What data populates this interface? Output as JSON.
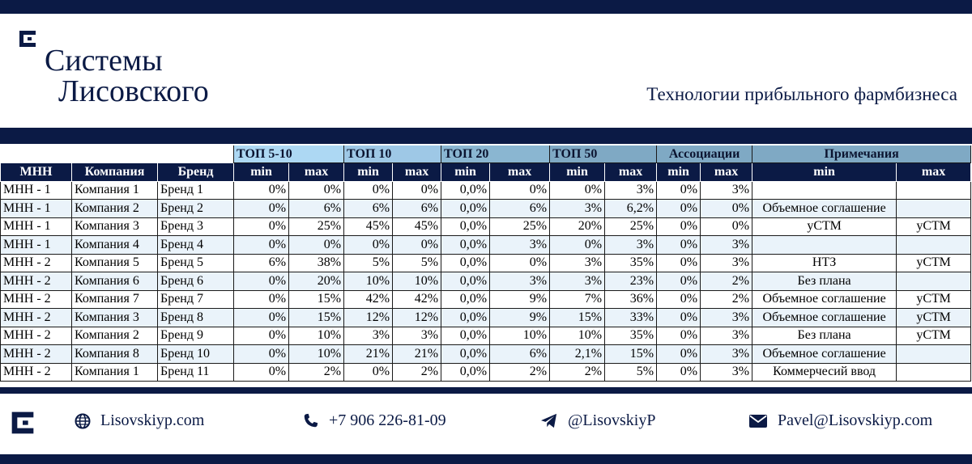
{
  "header": {
    "brand_line1": "Системы",
    "brand_line2": "Лисовского",
    "tagline": "Технологии прибыльного фармбизнеса",
    "logo_icon": "logo-bracket-icon"
  },
  "table": {
    "groups": {
      "top5_10": "ТОП 5-10",
      "top10": "ТОП 10",
      "top20": "ТОП 20",
      "top50": "ТОП 50",
      "assoc": "Ассоциации",
      "notes": "Примечания"
    },
    "columns": [
      "МНН",
      "Компания",
      "Бренд",
      "min",
      "max",
      "min",
      "max",
      "min",
      "max",
      "min",
      "max",
      "min",
      "max",
      "min",
      "max"
    ],
    "rows": [
      [
        "МНН - 1",
        "Компания 1",
        "Бренд 1",
        "0%",
        "0%",
        "0%",
        "0%",
        "0,0%",
        "0%",
        "0%",
        "3%",
        "0%",
        "3%",
        "",
        ""
      ],
      [
        "МНН - 1",
        "Компания 2",
        "Бренд 2",
        "0%",
        "6%",
        "6%",
        "6%",
        "0,0%",
        "6%",
        "3%",
        "6,2%",
        "0%",
        "0%",
        "Объемное соглашение",
        ""
      ],
      [
        "МНН - 1",
        "Компания 3",
        "Бренд 3",
        "0%",
        "25%",
        "45%",
        "45%",
        "0,0%",
        "25%",
        "20%",
        "25%",
        "0%",
        "0%",
        "уСТМ",
        "уСТМ"
      ],
      [
        "МНН - 1",
        "Компания 4",
        "Бренд 4",
        "0%",
        "0%",
        "0%",
        "0%",
        "0,0%",
        "3%",
        "0%",
        "3%",
        "0%",
        "3%",
        "",
        ""
      ],
      [
        "МНН - 2",
        "Компания 5",
        "Бренд 5",
        "6%",
        "38%",
        "5%",
        "5%",
        "0,0%",
        "0%",
        "3%",
        "35%",
        "0%",
        "3%",
        "НТЗ",
        "уСТМ"
      ],
      [
        "МНН - 2",
        "Компания 6",
        "Бренд 6",
        "0%",
        "20%",
        "10%",
        "10%",
        "0,0%",
        "3%",
        "3%",
        "23%",
        "0%",
        "2%",
        "Без плана",
        ""
      ],
      [
        "МНН - 2",
        "Компания 7",
        "Бренд 7",
        "0%",
        "15%",
        "42%",
        "42%",
        "0,0%",
        "9%",
        "7%",
        "36%",
        "0%",
        "2%",
        "Объемное соглашение",
        "уСТМ"
      ],
      [
        "МНН - 2",
        "Компания 3",
        "Бренд 8",
        "0%",
        "15%",
        "12%",
        "12%",
        "0,0%",
        "9%",
        "15%",
        "33%",
        "0%",
        "3%",
        "Объемное соглашение",
        "уСТМ"
      ],
      [
        "МНН - 2",
        "Компания 2",
        "Бренд 9",
        "0%",
        "10%",
        "3%",
        "3%",
        "0,0%",
        "10%",
        "10%",
        "35%",
        "0%",
        "3%",
        "Без плана",
        "уСТМ"
      ],
      [
        "МНН - 2",
        "Компания 8",
        "Бренд 10",
        "0%",
        "10%",
        "21%",
        "21%",
        "0,0%",
        "6%",
        "2,1%",
        "15%",
        "0%",
        "3%",
        "Объемное соглашение",
        ""
      ],
      [
        "МНН - 2",
        "Компания 1",
        "Бренд 11",
        "0%",
        "2%",
        "0%",
        "2%",
        "0,0%",
        "2%",
        "2%",
        "5%",
        "0%",
        "3%",
        "Коммерчесий ввод",
        ""
      ]
    ]
  },
  "footer": {
    "website": "Lisovskiyp.com",
    "phone": "+7 906 226-81-09",
    "telegram": "@LisovskiyP",
    "email": "Pavel@Lisovskiyp.com",
    "icons": [
      "logo-bracket-icon",
      "globe-icon",
      "phone-icon",
      "telegram-icon",
      "email-icon"
    ]
  },
  "colors": {
    "navy": "#0b1a45",
    "group_light": "#add8f3",
    "group_mid": "#9ec8e6",
    "group_dark": "#7fa9c4",
    "row_alt": "#eaf3fa"
  }
}
